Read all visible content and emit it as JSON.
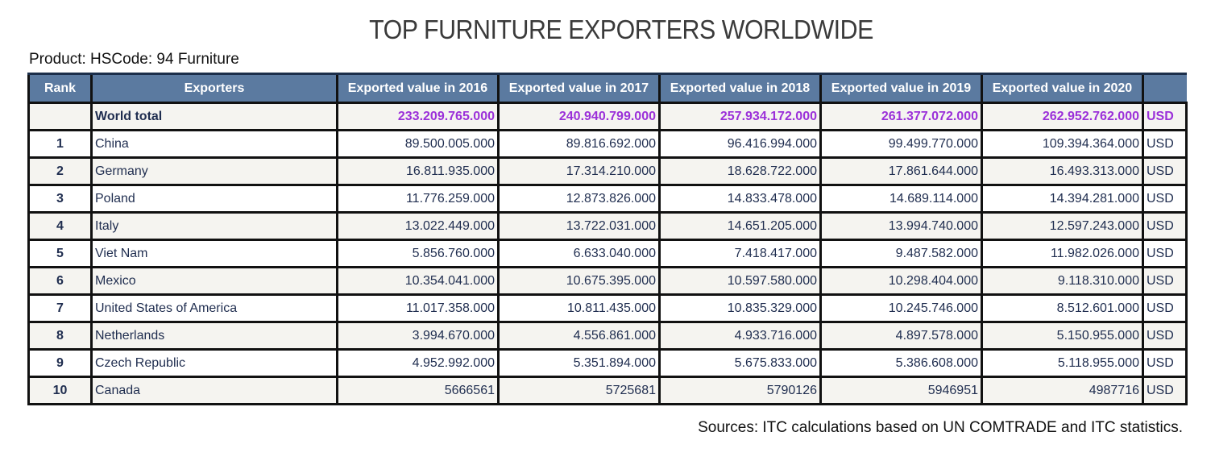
{
  "title": "TOP FURNITURE EXPORTERS WORLDWIDE",
  "product": "Product: HSCode: 94 Furniture",
  "source": "Sources: ITC calculations based on UN COMTRADE and ITC statistics.",
  "colors": {
    "header_bg": "#5b7aa0",
    "total_value": "#9b30d9",
    "text": "#1f2d4f",
    "row_alt": "#f5f4f0"
  },
  "chart_data": {
    "type": "table",
    "columns": [
      "Rank",
      "Exporters",
      "Exported value in 2016",
      "Exported value in 2017",
      "Exported value in 2018",
      "Exported value in 2019",
      "Exported value in 2020",
      ""
    ],
    "rows": [
      {
        "rank": "",
        "exporter": "World total",
        "values": [
          "233.209.765.000",
          "240.940.799.000",
          "257.934.172.000",
          "261.377.072.000",
          "262.952.762.000"
        ],
        "unit": "USD"
      },
      {
        "rank": "1",
        "exporter": "China",
        "values": [
          "89.500.005.000",
          "89.816.692.000",
          "96.416.994.000",
          "99.499.770.000",
          "109.394.364.000"
        ],
        "unit": "USD"
      },
      {
        "rank": "2",
        "exporter": "Germany",
        "values": [
          "16.811.935.000",
          "17.314.210.000",
          "18.628.722.000",
          "17.861.644.000",
          "16.493.313.000"
        ],
        "unit": "USD"
      },
      {
        "rank": "3",
        "exporter": "Poland",
        "values": [
          "11.776.259.000",
          "12.873.826.000",
          "14.833.478.000",
          "14.689.114.000",
          "14.394.281.000"
        ],
        "unit": "USD"
      },
      {
        "rank": "4",
        "exporter": "Italy",
        "values": [
          "13.022.449.000",
          "13.722.031.000",
          "14.651.205.000",
          "13.994.740.000",
          "12.597.243.000"
        ],
        "unit": "USD"
      },
      {
        "rank": "5",
        "exporter": "Viet Nam",
        "values": [
          "5.856.760.000",
          "6.633.040.000",
          "7.418.417.000",
          "9.487.582.000",
          "11.982.026.000"
        ],
        "unit": "USD"
      },
      {
        "rank": "6",
        "exporter": "Mexico",
        "values": [
          "10.354.041.000",
          "10.675.395.000",
          "10.597.580.000",
          "10.298.404.000",
          "9.118.310.000"
        ],
        "unit": "USD"
      },
      {
        "rank": "7",
        "exporter": "United States of America",
        "values": [
          "11.017.358.000",
          "10.811.435.000",
          "10.835.329.000",
          "10.245.746.000",
          "8.512.601.000"
        ],
        "unit": "USD"
      },
      {
        "rank": "8",
        "exporter": "Netherlands",
        "values": [
          "3.994.670.000",
          "4.556.861.000",
          "4.933.716.000",
          "4.897.578.000",
          "5.150.955.000"
        ],
        "unit": "USD"
      },
      {
        "rank": "9",
        "exporter": "Czech Republic",
        "values": [
          "4.952.992.000",
          "5.351.894.000",
          "5.675.833.000",
          "5.386.608.000",
          "5.118.955.000"
        ],
        "unit": "USD"
      },
      {
        "rank": "10",
        "exporter": "Canada",
        "values": [
          "5666561",
          "5725681",
          "5790126",
          "5946951",
          "4987716"
        ],
        "unit": "USD"
      }
    ]
  }
}
